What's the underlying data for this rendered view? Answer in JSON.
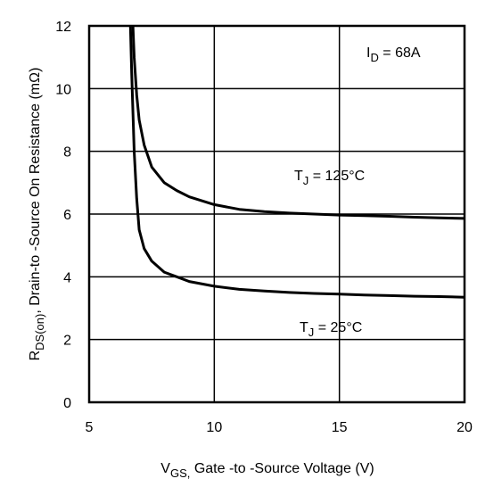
{
  "chart_data": {
    "type": "line",
    "xlabel": {
      "main": "V",
      "sub": "GS,",
      "rest": " Gate -to -Source Voltage  (V)"
    },
    "ylabel": {
      "main": "R",
      "sub": "DS(on)",
      "rest": ",   Drain-to -Source On Resistance (mΩ)"
    },
    "xlim": [
      5,
      20
    ],
    "ylim": [
      0,
      12
    ],
    "xticks": [
      5,
      10,
      15,
      20
    ],
    "yticks": [
      0,
      2,
      4,
      6,
      8,
      10,
      12
    ],
    "grid": true,
    "annotation": {
      "main": "I",
      "sub": "D",
      "rest": " = 68A"
    },
    "series": [
      {
        "name": {
          "main": "T",
          "sub": "J",
          "rest": " = 125°C"
        },
        "x": [
          6.75,
          6.8,
          6.9,
          7.0,
          7.2,
          7.5,
          8.0,
          8.5,
          9.0,
          10.0,
          11.0,
          12.0,
          13.0,
          14.0,
          15.0,
          16.0,
          17.0,
          18.0,
          19.0,
          20.0
        ],
        "y": [
          12.0,
          11.0,
          9.8,
          9.0,
          8.2,
          7.5,
          7.0,
          6.75,
          6.55,
          6.3,
          6.15,
          6.08,
          6.03,
          6.0,
          5.97,
          5.95,
          5.93,
          5.9,
          5.88,
          5.86
        ]
      },
      {
        "name": {
          "main": "T",
          "sub": "J",
          "rest": " = 25°C"
        },
        "x": [
          6.65,
          6.7,
          6.8,
          6.9,
          7.0,
          7.2,
          7.5,
          8.0,
          8.5,
          9.0,
          10.0,
          11.0,
          12.0,
          13.0,
          14.0,
          15.0,
          16.0,
          17.0,
          18.0,
          19.0,
          20.0
        ],
        "y": [
          12.0,
          10.5,
          8.0,
          6.5,
          5.5,
          4.9,
          4.5,
          4.15,
          4.0,
          3.85,
          3.7,
          3.6,
          3.55,
          3.5,
          3.47,
          3.45,
          3.42,
          3.4,
          3.38,
          3.37,
          3.35
        ]
      }
    ]
  }
}
